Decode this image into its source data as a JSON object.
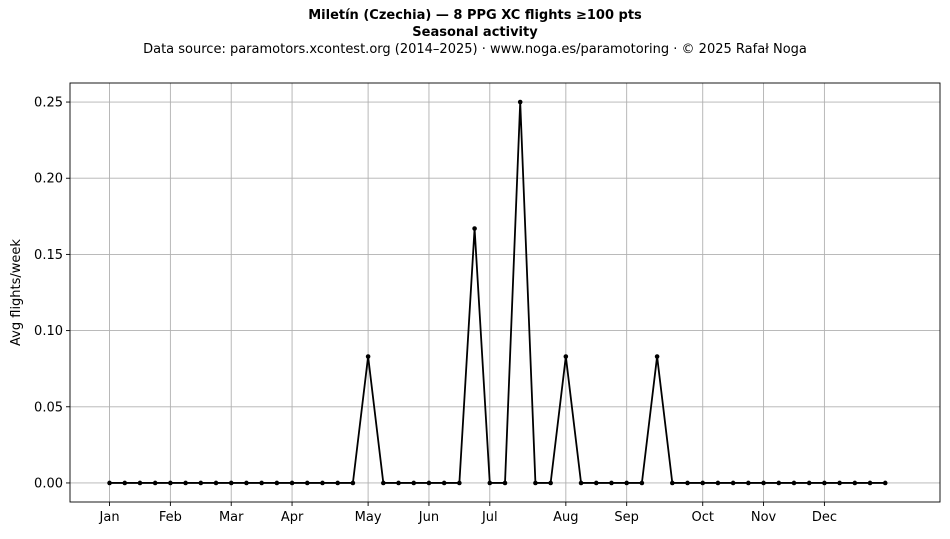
{
  "header": {
    "title": "Miletín (Czechia)  —  8 PPG XC flights ≥100 pts",
    "subtitle": "Seasonal activity",
    "source": "Data source: paramotors.xcontest.org (2014–2025)  ·  www.noga.es/paramotoring  ·  © 2025 Rafał Noga"
  },
  "chart_data": {
    "type": "line",
    "title": "Miletín (Czechia)  —  8 PPG XC flights ≥100 pts",
    "subtitle": "Seasonal activity",
    "xlabel": "",
    "ylabel": "Avg flights/week",
    "x": [
      1,
      2,
      3,
      4,
      5,
      6,
      7,
      8,
      9,
      10,
      11,
      12,
      13,
      14,
      15,
      16,
      17,
      18,
      19,
      20,
      21,
      22,
      23,
      24,
      25,
      26,
      27,
      28,
      29,
      30,
      31,
      32,
      33,
      34,
      35,
      36,
      37,
      38,
      39,
      40,
      41,
      42,
      43,
      44,
      45,
      46,
      47,
      48,
      49,
      50,
      51,
      52
    ],
    "series": [
      {
        "values": [
          0,
          0,
          0,
          0,
          0,
          0,
          0,
          0,
          0,
          0,
          0,
          0,
          0,
          0,
          0,
          0,
          0,
          0.083,
          0,
          0,
          0,
          0,
          0,
          0,
          0.167,
          0,
          0,
          0.25,
          0,
          0,
          0.083,
          0,
          0,
          0,
          0,
          0,
          0.083,
          0,
          0,
          0,
          0,
          0,
          0,
          0,
          0,
          0,
          0,
          0,
          0,
          0,
          0,
          0
        ],
        "color": "#000000"
      }
    ],
    "xticks": [
      {
        "label": "Jan",
        "x": 1
      },
      {
        "label": "Feb",
        "x": 5
      },
      {
        "label": "Mar",
        "x": 9
      },
      {
        "label": "Apr",
        "x": 13
      },
      {
        "label": "May",
        "x": 18
      },
      {
        "label": "Jun",
        "x": 22
      },
      {
        "label": "Jul",
        "x": 26
      },
      {
        "label": "Aug",
        "x": 31
      },
      {
        "label": "Sep",
        "x": 35
      },
      {
        "label": "Oct",
        "x": 40
      },
      {
        "label": "Nov",
        "x": 44
      },
      {
        "label": "Dec",
        "x": 48
      }
    ],
    "yticks": [
      "0.00",
      "0.05",
      "0.10",
      "0.15",
      "0.20",
      "0.25"
    ],
    "xlim": [
      -1.6,
      55.6
    ],
    "ylim": [
      -0.0125,
      0.2625
    ],
    "grid": true,
    "legend": "none"
  }
}
